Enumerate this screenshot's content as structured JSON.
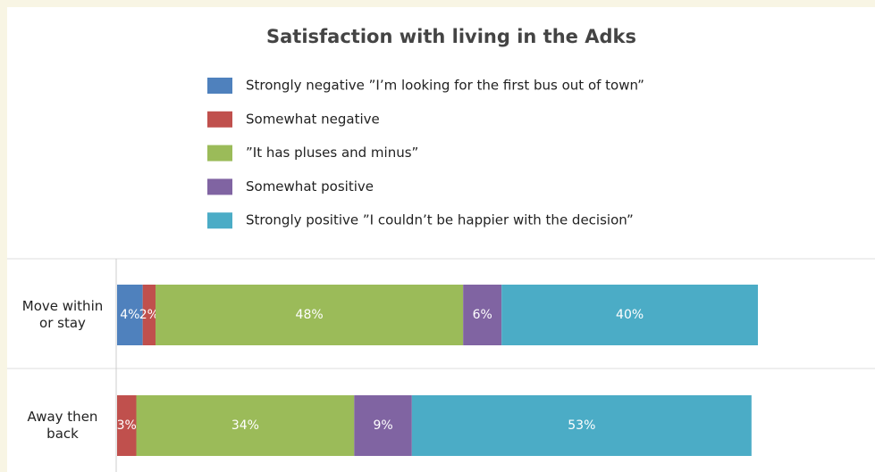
{
  "chart_data": {
    "type": "stacked-bar-horizontal",
    "title": "Satisfaction with living in the Adks",
    "categories": [
      "Move within or stay",
      "Away then back"
    ],
    "xlim": [
      0,
      100
    ],
    "series": [
      {
        "name": "Strongly negative ”I’m looking for the first bus out of town”",
        "color": "#4f81bd",
        "values": [
          4,
          null
        ],
        "value_labels": [
          "4%",
          null
        ]
      },
      {
        "name": "Somewhat negative",
        "color": "#c0504d",
        "values": [
          2,
          3
        ],
        "value_labels": [
          "2%",
          "3%"
        ]
      },
      {
        "name": "”It has pluses and minus”",
        "color": "#9bbb59",
        "values": [
          48,
          34
        ],
        "value_labels": [
          "48%",
          "34%"
        ]
      },
      {
        "name": "Somewhat positive",
        "color": "#8064a2",
        "values": [
          6,
          9
        ],
        "value_labels": [
          "6%",
          "9%"
        ]
      },
      {
        "name": "Strongly positive ”I couldn’t be happier with the decision”",
        "color": "#4bacc6",
        "values": [
          40,
          53
        ],
        "value_labels": [
          "40%",
          "53%"
        ]
      }
    ]
  }
}
